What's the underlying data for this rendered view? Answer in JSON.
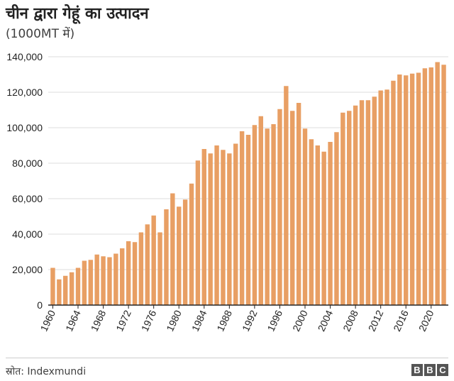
{
  "header": {
    "title": "चीन द्वारा गेहूं का उत्पादन",
    "subtitle": "(1000MT में)"
  },
  "footer": {
    "source": "स्रोत: Indexmundi",
    "logo_letters": [
      "B",
      "B",
      "C"
    ]
  },
  "colors": {
    "bar": "#E89F64",
    "grid": "#DDDDDD",
    "axis": "#222222"
  },
  "chart_data": {
    "type": "bar",
    "title": "चीन द्वारा गेहूं का उत्पादन",
    "subtitle": "(1000MT में)",
    "xlabel": "",
    "ylabel": "",
    "ylim": [
      0,
      140000
    ],
    "yticks": [
      0,
      20000,
      40000,
      60000,
      80000,
      100000,
      120000,
      140000
    ],
    "ytick_labels": [
      "0",
      "20,000",
      "40,000",
      "60,000",
      "80,000",
      "100,000",
      "120,000",
      "140,000"
    ],
    "xtick_labels": [
      "1960",
      "1964",
      "1968",
      "1972",
      "1976",
      "1980",
      "1984",
      "1988",
      "1992",
      "1996",
      "2000",
      "2004",
      "2008",
      "2012",
      "2016",
      "2020"
    ],
    "grid": true,
    "categories": [
      1960,
      1961,
      1962,
      1963,
      1964,
      1965,
      1966,
      1967,
      1968,
      1969,
      1970,
      1971,
      1972,
      1973,
      1974,
      1975,
      1976,
      1977,
      1978,
      1979,
      1980,
      1981,
      1982,
      1983,
      1984,
      1985,
      1986,
      1987,
      1988,
      1989,
      1990,
      1991,
      1992,
      1993,
      1994,
      1995,
      1996,
      1997,
      1998,
      1999,
      2000,
      2001,
      2002,
      2003,
      2004,
      2005,
      2006,
      2007,
      2008,
      2009,
      2010,
      2011,
      2012,
      2013,
      2014,
      2015,
      2016,
      2017,
      2018,
      2019,
      2020,
      2021,
      2022
    ],
    "values": [
      21000,
      14500,
      16500,
      18500,
      21000,
      25000,
      25500,
      28500,
      27500,
      27000,
      29000,
      32000,
      36000,
      35500,
      41000,
      45500,
      50500,
      41000,
      54000,
      63000,
      55500,
      59500,
      68500,
      81500,
      88000,
      85500,
      90000,
      87500,
      85500,
      91000,
      98000,
      96000,
      101500,
      106500,
      99500,
      102000,
      110500,
      123500,
      109500,
      114000,
      99500,
      93500,
      90000,
      86500,
      92000,
      97500,
      108500,
      109500,
      112500,
      115500,
      115500,
      117500,
      121000,
      121500,
      126500,
      130000,
      129500,
      130500,
      131000,
      133500,
      134000,
      137000,
      135500
    ]
  }
}
